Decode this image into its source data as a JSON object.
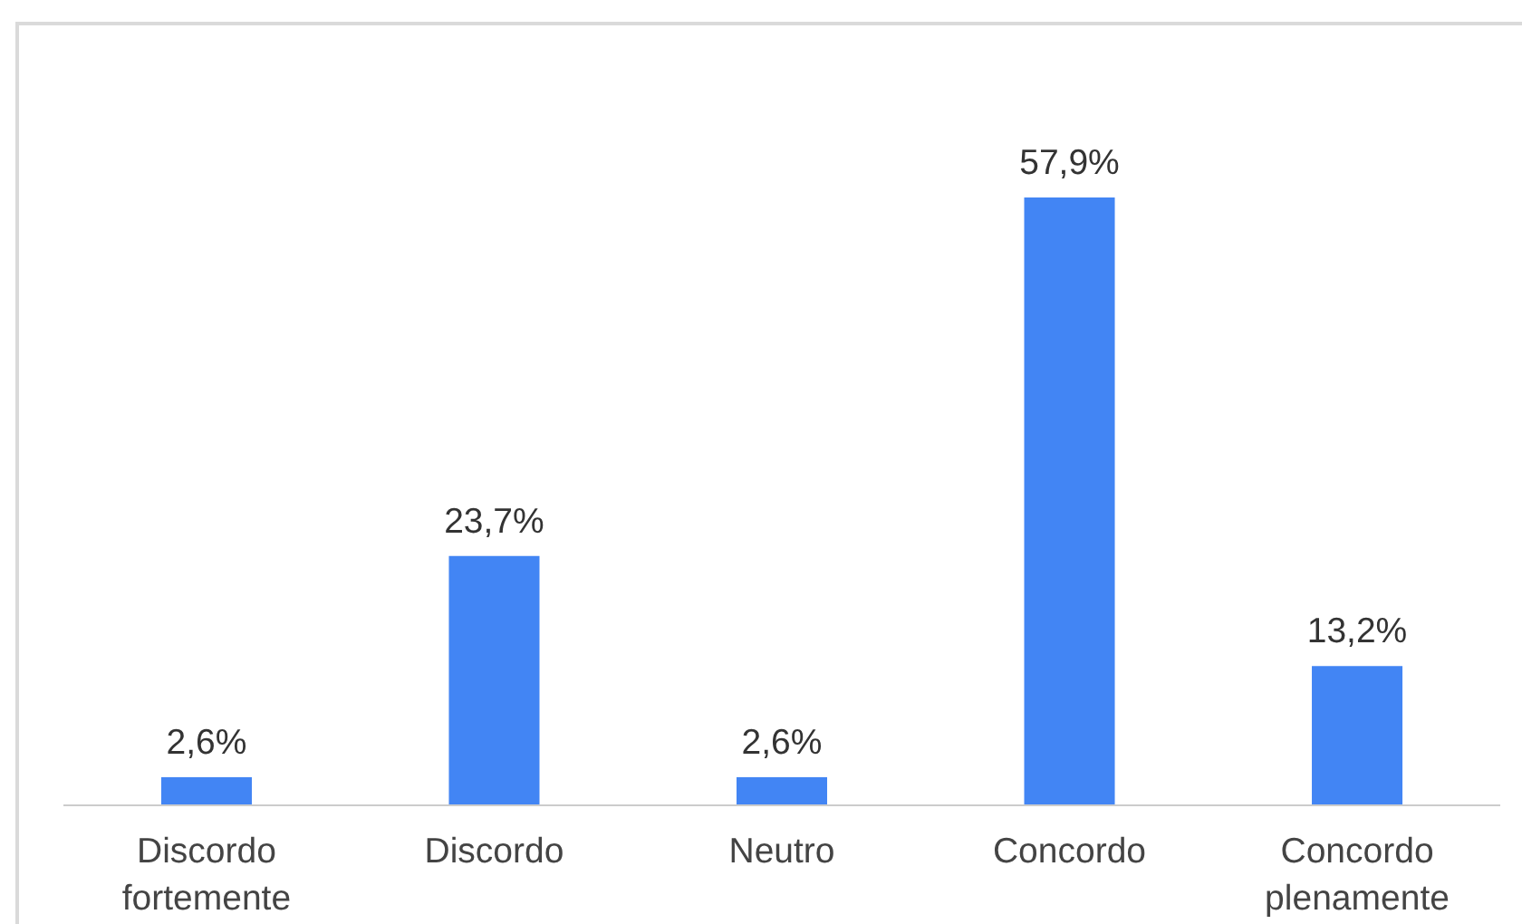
{
  "chart_data": {
    "type": "bar",
    "categories": [
      "Discordo fortemente",
      "Discordo",
      "Neutro",
      "Concordo",
      "Concordo plenamente"
    ],
    "values": [
      2.6,
      23.7,
      2.6,
      57.9,
      13.2
    ],
    "value_labels": [
      "2,6%",
      "23,7%",
      "2,6%",
      "57,9%",
      "13,2%"
    ],
    "color": "#4285f4"
  }
}
